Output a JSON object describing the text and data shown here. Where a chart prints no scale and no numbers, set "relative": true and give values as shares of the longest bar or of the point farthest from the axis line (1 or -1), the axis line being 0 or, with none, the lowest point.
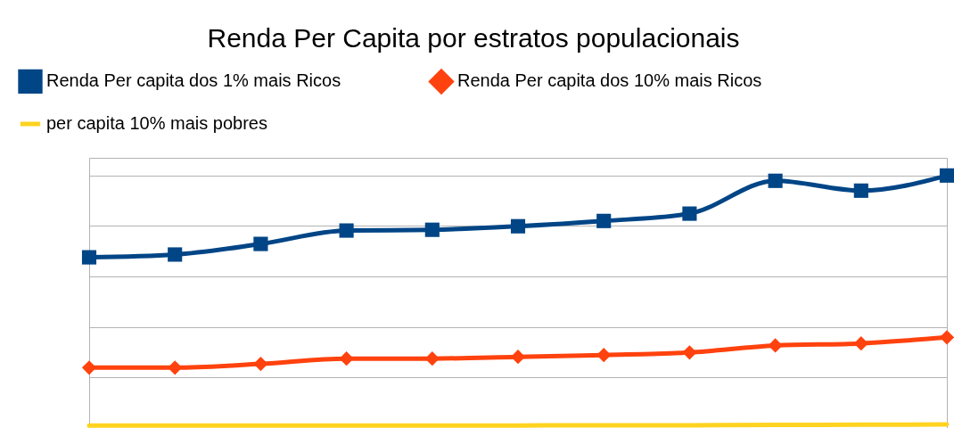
{
  "chart_data": {
    "type": "line",
    "title": "Renda Per Capita por estratos populacionais",
    "relative": true,
    "grid": "y",
    "legend": "top left",
    "line_style": "solid",
    "categories": [
      null,
      null,
      null,
      null,
      null,
      null,
      null,
      null,
      null,
      null,
      null
    ],
    "series": [
      {
        "name": "Renda Per capita dos 1% mais Ricos",
        "color": "#004586",
        "marker": "square",
        "values": [
          0.676,
          0.687,
          0.729,
          0.782,
          0.785,
          0.799,
          0.82,
          0.849,
          0.979,
          0.94,
          1
        ]
      },
      {
        "name": "Renda Per capita dos 10% mais Ricos",
        "color": "#ff420e",
        "marker": "diamond",
        "values": [
          0.239,
          0.239,
          0.254,
          0.275,
          0.275,
          0.282,
          0.289,
          0.299,
          0.327,
          0.335,
          0.359
        ]
      },
      {
        "name": "per capita 10% mais pobres",
        "color": "#ffd320",
        "marker": "none",
        "values": [
          0.01,
          0.01,
          0.01,
          0.01,
          0.01,
          0.01,
          0.011,
          0.011,
          0.012,
          0.013,
          0.014
        ]
      }
    ]
  }
}
